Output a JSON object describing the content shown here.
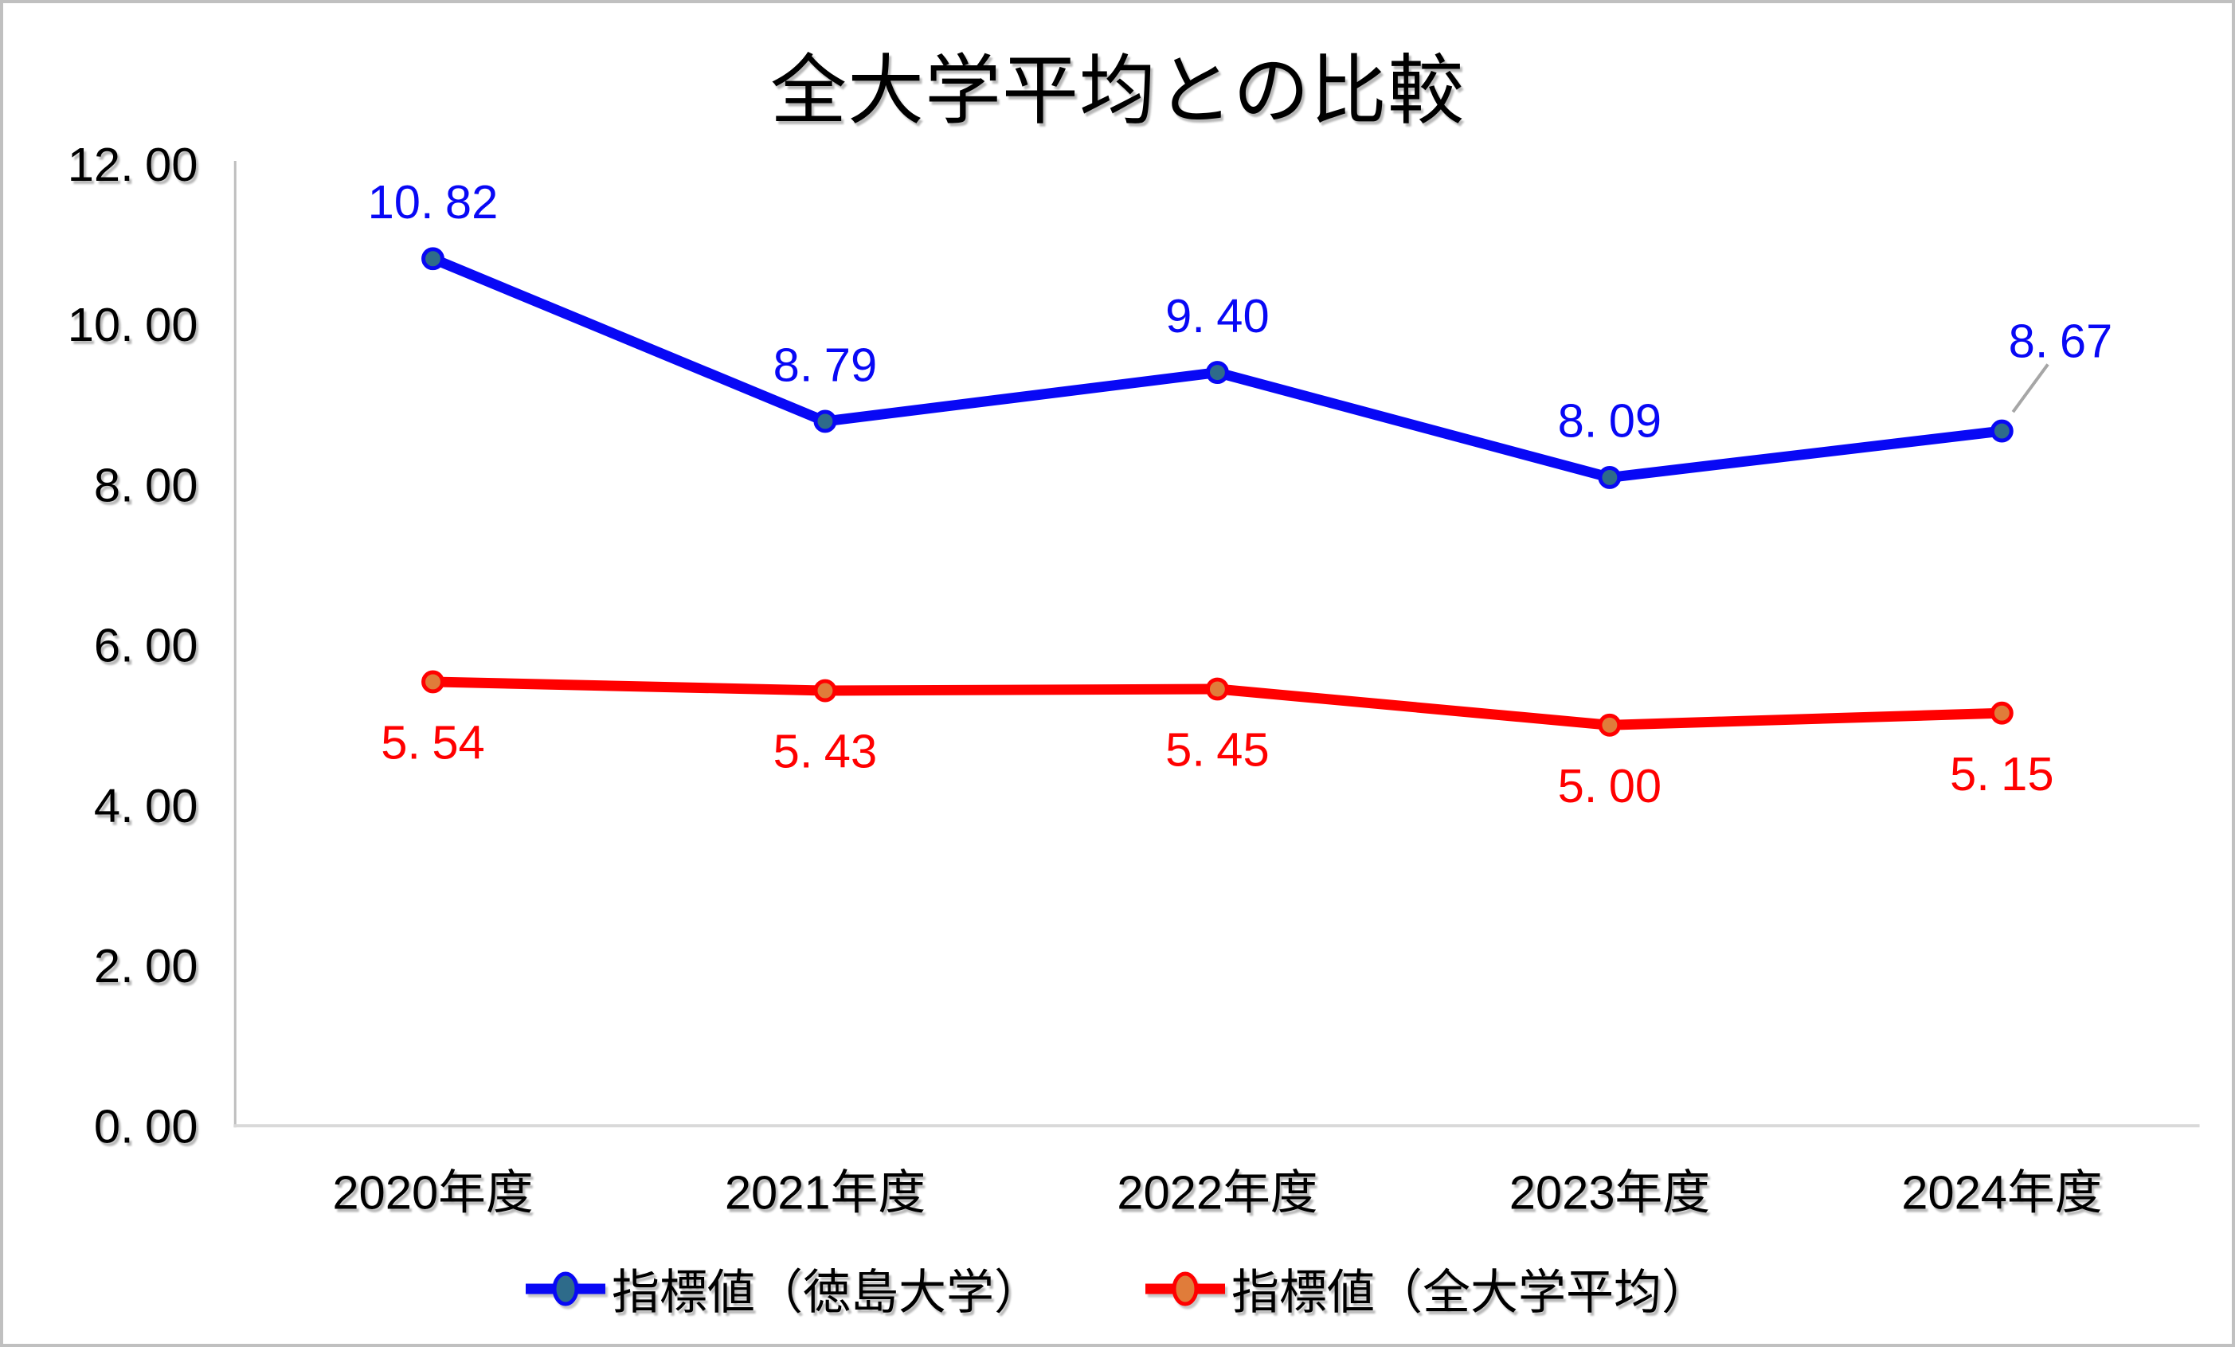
{
  "chart_data": {
    "type": "line",
    "title": "全大学平均との比較",
    "categories": [
      "2020年度",
      "2021年度",
      "2022年度",
      "2023年度",
      "2024年度"
    ],
    "series": [
      {
        "name": "指標値（徳島大学）",
        "color": "#0808F5",
        "marker_fill": "#2E6B8A",
        "values": [
          10.82,
          8.79,
          9.4,
          8.09,
          8.67
        ],
        "labels": [
          "10.82",
          "8.79",
          "9.40",
          "8.09",
          "8.67"
        ],
        "label_position": "above"
      },
      {
        "name": "指標値（全大学平均）",
        "color": "#FF0000",
        "marker_fill": "#E07C3A",
        "values": [
          5.54,
          5.43,
          5.45,
          5.0,
          5.15
        ],
        "labels": [
          "5.54",
          "5.43",
          "5.45",
          "5.00",
          "5.15"
        ],
        "label_position": "below"
      }
    ],
    "xlabel": "",
    "ylabel": "",
    "ylim": [
      0,
      12
    ],
    "ytick_step": 2,
    "ytick_labels": [
      "0.00",
      "2.00",
      "4.00",
      "6.00",
      "8.00",
      "10.00",
      "12.00"
    ],
    "grid": false,
    "legend_position": "bottom",
    "colors": {
      "axis_vertical": "#BFBFBF",
      "axis_horizontal": "#D9D9D9",
      "leader_line": "#A6A6A6",
      "chart_border": "#C0C0C0",
      "text": "#000000",
      "background": "#FFFFFF"
    }
  }
}
